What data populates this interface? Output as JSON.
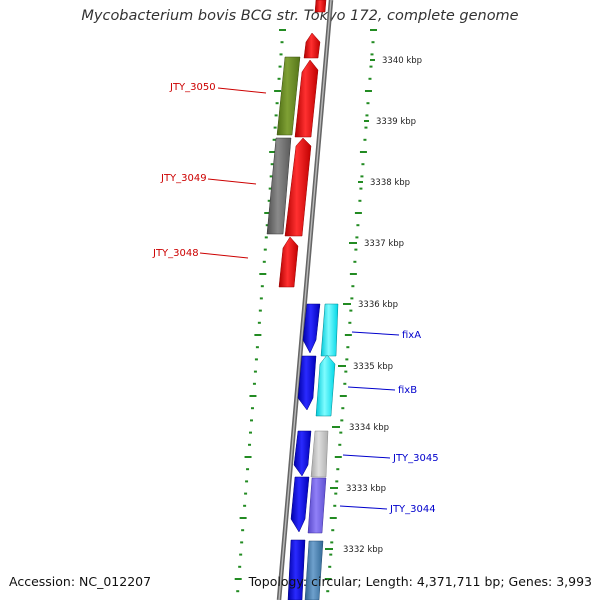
{
  "title": "Mycobacterium bovis BCG str. Tokyo 172, complete genome",
  "footer": {
    "accession": "Accession: NC_012207",
    "topology": "Topology: circular; Length: 4,371,711 bp; Genes: 3,993"
  },
  "colors": {
    "red": "#ff0000",
    "olive": "#6b8e23",
    "gray": "#707070",
    "blue": "#0000ff",
    "cyan": "#00ffff",
    "lightgray": "#c8c8c8",
    "purple": "#7b68ee",
    "steelblue": "#4682b4",
    "tick": "#228b22",
    "label_red": "#cc0000",
    "label_blue": "#0000cc"
  },
  "kbp_ticks": [
    "3340 kbp",
    "3339 kbp",
    "3338 kbp",
    "3337 kbp",
    "3336 kbp",
    "3335 kbp",
    "3334 kbp",
    "3333 kbp",
    "3332 kbp"
  ],
  "gene_labels": [
    "JTY_3050",
    "JTY_3049",
    "JTY_3048",
    "fixA",
    "fixB",
    "JTY_3045",
    "JTY_3044"
  ]
}
